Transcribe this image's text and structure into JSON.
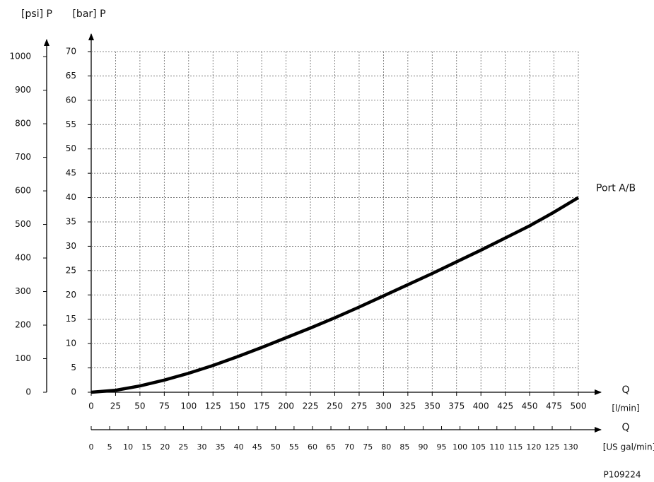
{
  "chart_data": {
    "type": "line",
    "ylabel": "[bar] P",
    "y2label": "[psi] P",
    "xlabel": "Q",
    "xunit": "[l/min]",
    "x2label": "Q",
    "x2unit": "[US gal/min]",
    "footnote": "P109224",
    "x": [
      0,
      25,
      50,
      75,
      100,
      125,
      150,
      175,
      200,
      225,
      250,
      275,
      300,
      325,
      350,
      375,
      400,
      425,
      450,
      475,
      500
    ],
    "series": [
      {
        "name": "Port A/B",
        "color": "#000000",
        "values": [
          0,
          0.4,
          1.3,
          2.5,
          3.9,
          5.5,
          7.3,
          9.2,
          11.2,
          13.2,
          15.3,
          17.5,
          19.8,
          22.1,
          24.4,
          26.8,
          29.2,
          31.7,
          34.2,
          37.0,
          40
        ]
      }
    ],
    "xlim": [
      0,
      500
    ],
    "xticks": [
      0,
      25,
      50,
      75,
      100,
      125,
      150,
      175,
      200,
      225,
      250,
      275,
      300,
      325,
      350,
      375,
      400,
      425,
      450,
      475,
      500
    ],
    "ylim": [
      0,
      70
    ],
    "yticks": [
      0,
      5,
      10,
      15,
      20,
      25,
      30,
      35,
      40,
      45,
      50,
      55,
      60,
      65,
      70
    ],
    "y2lim": [
      0,
      1015
    ],
    "y2ticks": [
      0,
      100,
      200,
      300,
      400,
      500,
      600,
      700,
      800,
      900,
      1000
    ],
    "x2lim": [
      0,
      132.09
    ],
    "x2ticks": [
      0,
      5,
      10,
      15,
      20,
      25,
      30,
      35,
      40,
      45,
      50,
      55,
      60,
      65,
      70,
      75,
      80,
      85,
      90,
      95,
      100,
      105,
      110,
      115,
      120,
      125,
      130
    ],
    "grid": true
  }
}
